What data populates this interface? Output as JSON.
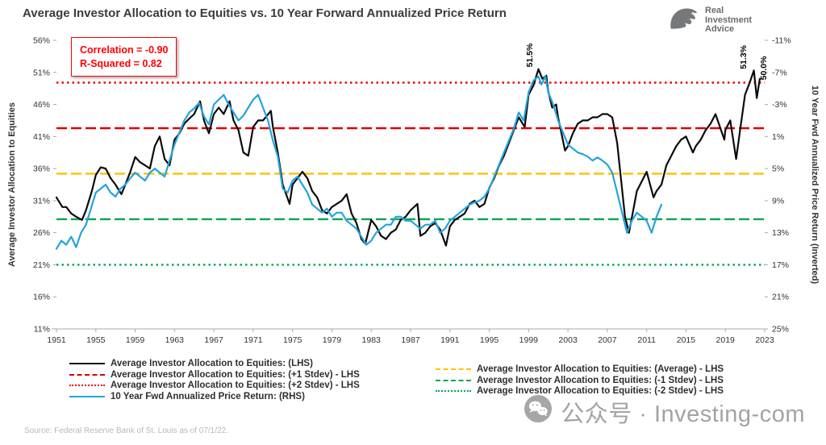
{
  "header": {
    "title": "Average Investor Allocation to Equities vs. 10 Year Forward Annualized Price Return",
    "logo": {
      "line1": "Real",
      "line2": "Investment",
      "line3": "Advice"
    }
  },
  "stats_box": {
    "correlation": "Correlation = -0.90",
    "r_squared": "R-Squared = 0.82"
  },
  "axes": {
    "left": {
      "title": "Average Investor Allocation to Equities",
      "tick_labels": [
        "56%",
        "51%",
        "46%",
        "41%",
        "36%",
        "31%",
        "26%",
        "21%",
        "16%",
        "11%"
      ],
      "tick_values": [
        56,
        51,
        46,
        41,
        36,
        31,
        26,
        21,
        16,
        11
      ]
    },
    "right": {
      "title": "10 Year Fwd Annualized Price Return (Inverted)",
      "tick_labels": [
        "-11%",
        "-7%",
        "-3%",
        "1%",
        "5%",
        "9%",
        "13%",
        "17%",
        "21%",
        "25%"
      ],
      "tick_values": [
        -11,
        -7,
        -3,
        1,
        5,
        9,
        13,
        17,
        21,
        25
      ]
    },
    "x": {
      "tick_labels": [
        "1951",
        "1955",
        "1959",
        "1963",
        "1967",
        "1971",
        "1975",
        "1979",
        "1983",
        "1987",
        "1991",
        "1995",
        "1999",
        "2003",
        "2007",
        "2011",
        "2015",
        "2019",
        "2023"
      ],
      "tick_values": [
        1951,
        1955,
        1959,
        1963,
        1967,
        1971,
        1975,
        1979,
        1983,
        1987,
        1991,
        1995,
        1999,
        2003,
        2007,
        2011,
        2015,
        2019,
        2023
      ]
    }
  },
  "chart_data": {
    "type": "line",
    "title": "Average Investor Allocation to Equities vs. 10 Year Forward Annualized Price Return",
    "xlim": [
      1951,
      2023
    ],
    "left_ylim": [
      11,
      56
    ],
    "right_ylim": [
      25,
      -11
    ],
    "right_axis_inverted": true,
    "series": [
      {
        "name": "Average Investor Allocation to Equities: (LHS)",
        "axis": "left",
        "color": "#0b0b0b",
        "width": 2.2,
        "x": [
          1951,
          1951.6,
          1952,
          1952.5,
          1953,
          1953.6,
          1954,
          1954.6,
          1955,
          1955.5,
          1956,
          1956.5,
          1957,
          1957.6,
          1958,
          1958.5,
          1959,
          1959.5,
          1960,
          1960.5,
          1961,
          1961.5,
          1962,
          1962.5,
          1963,
          1963.5,
          1964,
          1964.5,
          1965,
          1965.6,
          1966,
          1966.5,
          1967,
          1967.5,
          1968,
          1968.6,
          1969,
          1969.5,
          1970,
          1970.5,
          1971,
          1971.5,
          1972,
          1972.8,
          1973,
          1973.5,
          1974,
          1974.7,
          1975,
          1975.5,
          1976,
          1976.5,
          1977,
          1977.5,
          1978,
          1978.5,
          1979,
          1979.5,
          1980,
          1980.5,
          1981,
          1981.5,
          1982,
          1982.4,
          1983,
          1983.5,
          1984,
          1984.5,
          1985,
          1985.5,
          1986,
          1986.5,
          1987,
          1987.7,
          1988,
          1988.5,
          1989,
          1989.5,
          1990,
          1990.6,
          1991,
          1991.5,
          1992,
          1992.5,
          1993,
          1993.5,
          1994,
          1994.5,
          1995,
          1995.5,
          1996,
          1996.5,
          1997,
          1997.5,
          1998,
          1998.6,
          1999,
          1999.5,
          2000,
          2000.4,
          2000.8,
          2001,
          2001.4,
          2001.8,
          2002,
          2002.7,
          2003,
          2003.5,
          2004,
          2004.5,
          2005,
          2005.5,
          2006,
          2006.5,
          2007,
          2007.5,
          2008,
          2008.8,
          2009.2,
          2009.7,
          2010,
          2010.5,
          2011,
          2011.7,
          2012,
          2012.5,
          2013,
          2013.5,
          2014,
          2014.5,
          2015,
          2015.7,
          2016,
          2016.5,
          2017,
          2017.5,
          2018,
          2018.9,
          2019,
          2019.5,
          2020.1,
          2020.5,
          2021,
          2021.5,
          2021.9,
          2022.2,
          2022.5
        ],
        "values": [
          31.5,
          30,
          30,
          29,
          28.5,
          28,
          29.5,
          32.5,
          35,
          36.2,
          36,
          34.5,
          33.5,
          32,
          33.5,
          35.5,
          37.8,
          37,
          36.5,
          36,
          39.5,
          41,
          37.5,
          36.5,
          40.5,
          41.5,
          43,
          43.8,
          44.5,
          46.5,
          43.5,
          41.5,
          44.5,
          45.5,
          44.5,
          46.5,
          43.5,
          42,
          38.5,
          38,
          42.5,
          43.5,
          43.5,
          45,
          42.5,
          38.5,
          33.5,
          30.5,
          33.5,
          34.5,
          35.5,
          34.5,
          32.5,
          31.5,
          29.5,
          29,
          30,
          30.5,
          31,
          32,
          29,
          27.5,
          25,
          24.3,
          28,
          27,
          25.5,
          25,
          26,
          26.5,
          28,
          28.5,
          29.5,
          30.5,
          25.5,
          26,
          27,
          27.5,
          26.5,
          24,
          27,
          28,
          28.5,
          29,
          30.5,
          31,
          30,
          30.5,
          33,
          34.5,
          36.5,
          38,
          40,
          42,
          44,
          42.5,
          47.5,
          49,
          51.5,
          50,
          50.5,
          48,
          45.5,
          46,
          44,
          38.8,
          39.5,
          41.5,
          43,
          43.5,
          43.5,
          44,
          44,
          44.5,
          44.5,
          44,
          40,
          28.5,
          26,
          30,
          32.5,
          34,
          35.5,
          31.5,
          32.5,
          33.5,
          36.5,
          38,
          39.5,
          40.5,
          41,
          38.5,
          39.5,
          40.5,
          42,
          43,
          44.5,
          40.5,
          42,
          43.5,
          37.5,
          42,
          47.5,
          49.5,
          51.3,
          47,
          50
        ]
      },
      {
        "name": "10 Year Fwd Annualized Price Return: (RHS)",
        "axis": "right",
        "color": "#25a3dd",
        "width": 2.2,
        "x": [
          1951,
          1951.5,
          1952,
          1952.5,
          1953,
          1953.5,
          1954,
          1954.5,
          1955,
          1955.5,
          1956,
          1956.5,
          1957,
          1957.5,
          1958,
          1958.5,
          1959,
          1959.5,
          1960,
          1960.5,
          1961,
          1961.5,
          1962,
          1962.5,
          1963,
          1963.5,
          1964,
          1964.5,
          1965,
          1965.5,
          1966,
          1966.5,
          1967,
          1967.5,
          1968,
          1968.5,
          1969,
          1969.5,
          1970,
          1970.5,
          1971,
          1971.5,
          1972,
          1972.5,
          1973,
          1973.5,
          1974,
          1974.5,
          1975,
          1975.5,
          1976,
          1976.5,
          1977,
          1977.5,
          1978,
          1978.5,
          1979,
          1979.5,
          1980,
          1980.5,
          1981,
          1981.5,
          1982,
          1982.5,
          1983,
          1983.5,
          1984,
          1984.5,
          1985,
          1985.5,
          1986,
          1986.5,
          1987,
          1987.5,
          1988,
          1988.5,
          1989,
          1989.5,
          1990,
          1990.5,
          1991,
          1991.5,
          1992,
          1992.5,
          1993,
          1993.5,
          1994,
          1994.5,
          1995,
          1995.5,
          1996,
          1996.5,
          1997,
          1997.5,
          1998,
          1998.5,
          1999,
          1999.5,
          2000,
          2000.3,
          2000.7,
          2001,
          2001.5,
          2002,
          2002.5,
          2003,
          2003.5,
          2004,
          2004.5,
          2005,
          2005.5,
          2006,
          2006.5,
          2007,
          2007.5,
          2008,
          2008.5,
          2009,
          2009.5,
          2010,
          2010.5,
          2011,
          2011.5,
          2012,
          2012.5
        ],
        "values": [
          15,
          14,
          14.5,
          13.5,
          14.8,
          13,
          12,
          10,
          8,
          7.5,
          7,
          8,
          8.5,
          7.5,
          7,
          6.2,
          5.5,
          6,
          6.5,
          5.5,
          5,
          5.5,
          6,
          4,
          2,
          0.5,
          -1,
          -2,
          -2.5,
          -3.2,
          -1.5,
          -0.5,
          -3,
          -3.6,
          -4.2,
          -3,
          -2,
          -1,
          -1.6,
          -2.6,
          -3.6,
          -4.2,
          -2.6,
          -1,
          1.5,
          3.5,
          7.5,
          8,
          6.5,
          6,
          7,
          8,
          9.5,
          10,
          10.5,
          10,
          11,
          10.5,
          10.5,
          11.5,
          12,
          12.5,
          13.5,
          14.5,
          14,
          13,
          12.5,
          12,
          12,
          11,
          11,
          11.5,
          11.5,
          12,
          12.5,
          12,
          12,
          11.5,
          13,
          12.5,
          11.5,
          11,
          10.5,
          10,
          9.5,
          9.2,
          9,
          8.5,
          7.5,
          6,
          4.5,
          3,
          1.5,
          0,
          -2,
          -1,
          -4.5,
          -6,
          -6.5,
          -5.5,
          -6.5,
          -4.5,
          -3,
          -1,
          0.5,
          2,
          2.5,
          3,
          3.2,
          3.5,
          4,
          3.6,
          4,
          4.5,
          5.5,
          8,
          10.5,
          13,
          11.5,
          10.5,
          11,
          11.5,
          13,
          11,
          9.5
        ]
      }
    ],
    "reference_lines": [
      {
        "name": "+2 Stdev",
        "value": 49.4,
        "color": "#f20000",
        "dash": "dotted"
      },
      {
        "name": "+1 Stdev",
        "value": 42.3,
        "color": "#e00000",
        "dash": "dashed"
      },
      {
        "name": "Average",
        "value": 35.2,
        "color": "#ffc000",
        "dash": "dashed"
      },
      {
        "name": "-1 Stdev",
        "value": 28.1,
        "color": "#00a651",
        "dash": "dashed"
      },
      {
        "name": "-2 Stdev",
        "value": 21.0,
        "color": "#00a651",
        "dash": "dotted"
      }
    ],
    "annotations": [
      {
        "text": "51.5%",
        "year": 1999.4,
        "value": 51.8
      },
      {
        "text": "51.3%",
        "year": 2021.1,
        "value": 51.5
      },
      {
        "text": "50.0%",
        "year": 2023.15,
        "value": 49.8
      }
    ]
  },
  "legend": {
    "left": [
      {
        "label": "Average Investor Allocation to Equities: (LHS)",
        "color": "#0b0b0b",
        "dash": "solid"
      },
      {
        "label": "Average Investor Allocation to Equities: (+1 Stdev) - LHS",
        "color": "#e00000",
        "dash": "dashed"
      },
      {
        "label": "Average Investor Allocation to Equities: (+2 Stdev) - LHS",
        "color": "#f20000",
        "dash": "dotted"
      },
      {
        "label": "10 Year Fwd Annualized Price Return: (RHS)",
        "color": "#25a3dd",
        "dash": "solid"
      }
    ],
    "right": [
      {
        "label": "Average Investor Allocation to Equities: (Average) - LHS",
        "color": "#ffc000",
        "dash": "dashed"
      },
      {
        "label": "Average Investor Allocation to Equities: (-1 Stdev) - LHS",
        "color": "#00a651",
        "dash": "dashed"
      },
      {
        "label": "Average Investor Allocation to Equities: (-2 Stdev) - LHS",
        "color": "#00a651",
        "dash": "dotted"
      }
    ]
  },
  "source": "Source: Federal Reserve Bank of St. Louis as of 07/1/22.",
  "watermark": {
    "text": "公众号 · Investing-com"
  },
  "colors": {
    "black_series": "#0b0b0b",
    "blue_series": "#25a3dd",
    "red": "#e00000",
    "yellow": "#ffc000",
    "green": "#00a651",
    "stats_text": "#ff0000",
    "watermark_gray": "#a3a3a3"
  }
}
